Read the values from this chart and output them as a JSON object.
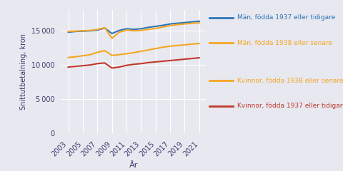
{
  "years": [
    2003,
    2004,
    2005,
    2006,
    2007,
    2008,
    2009,
    2010,
    2011,
    2012,
    2013,
    2014,
    2015,
    2016,
    2017,
    2018,
    2019,
    2020,
    2021
  ],
  "man_1937": [
    14800,
    14900,
    14950,
    15000,
    15100,
    15400,
    14600,
    15050,
    15300,
    15200,
    15300,
    15500,
    15650,
    15800,
    16000,
    16100,
    16200,
    16300,
    16400
  ],
  "man_1938": [
    14900,
    14950,
    15000,
    15050,
    15200,
    15450,
    13900,
    14800,
    15100,
    15000,
    15050,
    15200,
    15350,
    15550,
    15750,
    15900,
    16000,
    16100,
    16150
  ],
  "kvinna_1938": [
    11100,
    11200,
    11350,
    11500,
    11850,
    12100,
    11400,
    11500,
    11650,
    11800,
    12000,
    12200,
    12400,
    12600,
    12750,
    12850,
    12950,
    13050,
    13150
  ],
  "kvinna_1937": [
    9700,
    9800,
    9900,
    10000,
    10200,
    10300,
    9550,
    9700,
    9950,
    10100,
    10200,
    10350,
    10450,
    10550,
    10650,
    10750,
    10850,
    10950,
    11050
  ],
  "color_man_1937": "#2e75b6",
  "color_man_1938": "#f5a623",
  "color_kvinna_1938": "#f5a623",
  "color_kvinna_1937": "#c0392b",
  "label_man_1937": "Män, födda 1937 eller tidigare",
  "label_man_1938": "Män, födda 1938 eller senare",
  "label_kvinna_1938": "Kvinnor, födda 1938 eller senare",
  "label_kvinna_1937": "Kvinnor, födda 1937 eller tidigare",
  "xlabel": "År",
  "ylabel": "Snittutbetalning, kron",
  "ylim": [
    0,
    18000
  ],
  "yticks": [
    0,
    5000,
    10000,
    15000
  ],
  "background_color": "#e8e8f0",
  "plot_bg_color": "#e8e8f0",
  "grid_color": "#ffffff",
  "ylabel_color": "#3c3c6e",
  "ytick_color": "#3c3c6e",
  "xtick_color": "#3c3c6e",
  "xlabel_color": "#3c3c6e"
}
